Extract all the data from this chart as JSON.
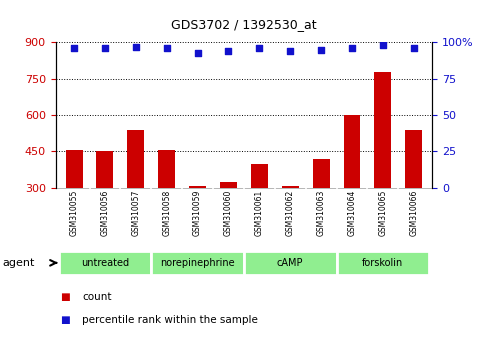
{
  "title": "GDS3702 / 1392530_at",
  "samples": [
    "GSM310055",
    "GSM310056",
    "GSM310057",
    "GSM310058",
    "GSM310059",
    "GSM310060",
    "GSM310061",
    "GSM310062",
    "GSM310063",
    "GSM310064",
    "GSM310065",
    "GSM310066"
  ],
  "counts": [
    455,
    452,
    540,
    456,
    308,
    325,
    398,
    308,
    418,
    600,
    780,
    540
  ],
  "percentile_ranks": [
    96,
    96,
    97,
    96,
    93,
    94,
    96,
    94,
    95,
    96,
    98,
    96
  ],
  "ylim_left": [
    300,
    900
  ],
  "ylim_right": [
    0,
    100
  ],
  "yticks_left": [
    300,
    450,
    600,
    750,
    900
  ],
  "yticks_right": [
    0,
    25,
    50,
    75,
    100
  ],
  "ytick_labels_right": [
    "0",
    "25",
    "50",
    "75",
    "100%"
  ],
  "groups": [
    {
      "label": "untreated",
      "start": 0,
      "end": 3
    },
    {
      "label": "norepinephrine",
      "start": 3,
      "end": 6
    },
    {
      "label": "cAMP",
      "start": 6,
      "end": 9
    },
    {
      "label": "forskolin",
      "start": 9,
      "end": 12
    }
  ],
  "bar_color": "#CC0000",
  "dot_color": "#1111CC",
  "grid_color": "#000000",
  "tick_label_color_left": "#CC0000",
  "tick_label_color_right": "#1111CC",
  "sample_box_color": "#C8C8C8",
  "group_box_color": "#90EE90",
  "agent_label": "agent",
  "legend_items": [
    {
      "label": "count",
      "color": "#CC0000"
    },
    {
      "label": "percentile rank within the sample",
      "color": "#1111CC"
    }
  ],
  "background_color": "#FFFFFF"
}
